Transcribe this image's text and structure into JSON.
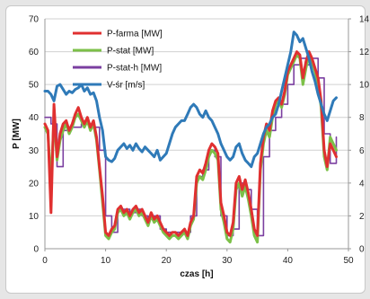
{
  "chart_data": {
    "type": "line",
    "xlabel": "czas [h]",
    "ylabel": "P [MW]",
    "xlim": [
      0,
      50
    ],
    "ylim": [
      0,
      70
    ],
    "y2lim": [
      0,
      14
    ],
    "x_ticks": [
      "0",
      "10",
      "20",
      "30",
      "40",
      "50"
    ],
    "y_ticks": [
      "0",
      "10",
      "20",
      "30",
      "40",
      "50",
      "60",
      "70"
    ],
    "y2_ticks": [
      "0",
      "2",
      "4",
      "6",
      "8",
      "10",
      "12",
      "14"
    ],
    "grid": "horizontal",
    "legend_position": "top-left",
    "series": [
      {
        "name": "P-farma [MW]",
        "color": "#e03030",
        "axis": "left",
        "x": [
          0,
          0.5,
          1,
          1.5,
          2,
          2.5,
          3,
          3.5,
          4,
          4.5,
          5,
          5.5,
          6,
          6.5,
          7,
          7.5,
          8,
          8.5,
          9,
          9.5,
          10,
          10.5,
          11,
          11.5,
          12,
          12.5,
          13,
          13.5,
          14,
          14.5,
          15,
          15.5,
          16,
          16.5,
          17,
          17.5,
          18,
          18.5,
          19,
          19.5,
          20,
          20.5,
          21,
          21.5,
          22,
          22.5,
          23,
          23.5,
          24,
          24.5,
          25,
          25.5,
          26,
          26.5,
          27,
          27.5,
          28,
          28.5,
          29,
          29.5,
          30,
          30.5,
          31,
          31.5,
          32,
          32.5,
          33,
          33.5,
          34,
          34.5,
          35,
          35.5,
          36,
          36.5,
          37,
          37.5,
          38,
          38.5,
          39,
          39.5,
          40,
          40.5,
          41,
          41.5,
          42,
          42.5,
          43,
          43.5,
          44,
          44.5,
          45,
          45.5,
          46,
          46.5,
          47,
          47.5,
          48
        ],
        "values": [
          38,
          36,
          11,
          44,
          28,
          35,
          38,
          39,
          36,
          38,
          41,
          43,
          40,
          38,
          40,
          37,
          39,
          34,
          25,
          16,
          5,
          4,
          6,
          7,
          12,
          13,
          11,
          12,
          10,
          12,
          13,
          11,
          12,
          10,
          8,
          11,
          9,
          10,
          8,
          6,
          5,
          4,
          5,
          5,
          4,
          5,
          6,
          4,
          8,
          10,
          22,
          24,
          23,
          26,
          30,
          32,
          31,
          29,
          14,
          10,
          5,
          4,
          8,
          20,
          22,
          18,
          21,
          17,
          12,
          6,
          4,
          26,
          34,
          38,
          36,
          42,
          45,
          46,
          44,
          48,
          54,
          56,
          58,
          60,
          59,
          52,
          57,
          60,
          58,
          55,
          52,
          45,
          30,
          25,
          32,
          30,
          28
        ]
      },
      {
        "name": "P-stat [MW]",
        "color": "#7cc048",
        "axis": "left",
        "x": [
          0,
          0.5,
          1,
          1.5,
          2,
          2.5,
          3,
          3.5,
          4,
          4.5,
          5,
          5.5,
          6,
          6.5,
          7,
          7.5,
          8,
          8.5,
          9,
          9.5,
          10,
          10.5,
          11,
          11.5,
          12,
          12.5,
          13,
          13.5,
          14,
          14.5,
          15,
          15.5,
          16,
          16.5,
          17,
          17.5,
          18,
          18.5,
          19,
          19.5,
          20,
          20.5,
          21,
          21.5,
          22,
          22.5,
          23,
          23.5,
          24,
          24.5,
          25,
          25.5,
          26,
          26.5,
          27,
          27.5,
          28,
          28.5,
          29,
          29.5,
          30,
          30.5,
          31,
          31.5,
          32,
          32.5,
          33,
          33.5,
          34,
          34.5,
          35,
          35.5,
          36,
          36.5,
          37,
          37.5,
          38,
          38.5,
          39,
          39.5,
          40,
          40.5,
          41,
          41.5,
          42,
          42.5,
          43,
          43.5,
          44,
          44.5,
          45,
          45.5,
          46,
          46.5,
          47,
          47.5,
          48
        ],
        "values": [
          37,
          35,
          20,
          40,
          27,
          33,
          36,
          38,
          35,
          37,
          40,
          41,
          39,
          37,
          39,
          36,
          38,
          33,
          24,
          14,
          4,
          3,
          5,
          6,
          11,
          12,
          10,
          11,
          9,
          11,
          12,
          10,
          11,
          9,
          7,
          10,
          8,
          9,
          7,
          5,
          4,
          3,
          4,
          4,
          3,
          4,
          5,
          3,
          7,
          9,
          20,
          22,
          21,
          24,
          28,
          30,
          29,
          27,
          12,
          8,
          3,
          2,
          6,
          18,
          20,
          16,
          19,
          15,
          10,
          4,
          2,
          24,
          32,
          36,
          34,
          40,
          44,
          45,
          43,
          47,
          53,
          55,
          57,
          59,
          58,
          50,
          55,
          59,
          57,
          54,
          50,
          43,
          28,
          24,
          34,
          32,
          30
        ]
      },
      {
        "name": "P-stat-h [MW]",
        "color": "#7b3fa0",
        "axis": "left",
        "x": [
          0,
          1,
          2,
          3,
          4,
          5,
          6,
          7,
          8,
          9,
          10,
          11,
          12,
          13,
          14,
          15,
          16,
          17,
          18,
          19,
          20,
          21,
          22,
          23,
          24,
          25,
          26,
          27,
          28,
          29,
          30,
          31,
          32,
          33,
          34,
          35,
          36,
          37,
          38,
          39,
          40,
          41,
          42,
          43,
          44,
          45,
          46,
          47,
          48
        ],
        "values": [
          40,
          38,
          25,
          36,
          37,
          37,
          38,
          38,
          37,
          30,
          10,
          5,
          12,
          12,
          11,
          12,
          10,
          9,
          10,
          6,
          5,
          5,
          5,
          5,
          10,
          22,
          24,
          30,
          28,
          10,
          4,
          6,
          20,
          18,
          12,
          4,
          28,
          36,
          40,
          44,
          50,
          56,
          58,
          56,
          58,
          52,
          35,
          26,
          34
        ]
      },
      {
        "name": "V-śr [m/s]",
        "color": "#2f7ab8",
        "axis": "right",
        "x": [
          0,
          0.5,
          1,
          1.5,
          2,
          2.5,
          3,
          3.5,
          4,
          4.5,
          5,
          5.5,
          6,
          6.5,
          7,
          7.5,
          8,
          8.5,
          9,
          9.5,
          10,
          10.5,
          11,
          11.5,
          12,
          12.5,
          13,
          13.5,
          14,
          14.5,
          15,
          15.5,
          16,
          16.5,
          17,
          17.5,
          18,
          18.5,
          19,
          19.5,
          20,
          20.5,
          21,
          21.5,
          22,
          22.5,
          23,
          23.5,
          24,
          24.5,
          25,
          25.5,
          26,
          26.5,
          27,
          27.5,
          28,
          28.5,
          29,
          29.5,
          30,
          30.5,
          31,
          31.5,
          32,
          32.5,
          33,
          33.5,
          34,
          34.5,
          35,
          35.5,
          36,
          36.5,
          37,
          37.5,
          38,
          38.5,
          39,
          39.5,
          40,
          40.5,
          41,
          41.5,
          42,
          42.5,
          43,
          43.5,
          44,
          44.5,
          45,
          45.5,
          46,
          46.5,
          47,
          47.5,
          48
        ],
        "values": [
          9.6,
          9.6,
          9.4,
          9.0,
          9.9,
          10.0,
          9.7,
          9.4,
          9.6,
          9.5,
          9.7,
          9.8,
          10.0,
          9.6,
          9.8,
          9.4,
          9.5,
          9.0,
          8.0,
          7.2,
          5.6,
          5.4,
          5.3,
          5.5,
          6.0,
          6.2,
          6.4,
          6.1,
          6.3,
          6.0,
          6.4,
          6.1,
          5.9,
          6.2,
          6.0,
          5.8,
          5.6,
          6.0,
          5.4,
          5.6,
          5.8,
          6.4,
          7.0,
          7.4,
          7.6,
          7.8,
          7.8,
          8.2,
          8.6,
          8.8,
          8.6,
          8.2,
          8.0,
          8.4,
          8.0,
          7.8,
          7.4,
          7.0,
          6.4,
          6.0,
          5.6,
          5.4,
          5.6,
          6.2,
          6.4,
          5.8,
          5.4,
          5.2,
          5.0,
          5.6,
          5.8,
          6.4,
          7.0,
          7.4,
          7.6,
          8.0,
          8.2,
          8.8,
          9.6,
          10.4,
          11.2,
          12.0,
          13.2,
          13.0,
          12.6,
          12.8,
          12.2,
          11.6,
          10.8,
          10.2,
          9.4,
          8.8,
          8.2,
          7.8,
          8.4,
          9.0,
          9.2
        ]
      }
    ]
  }
}
